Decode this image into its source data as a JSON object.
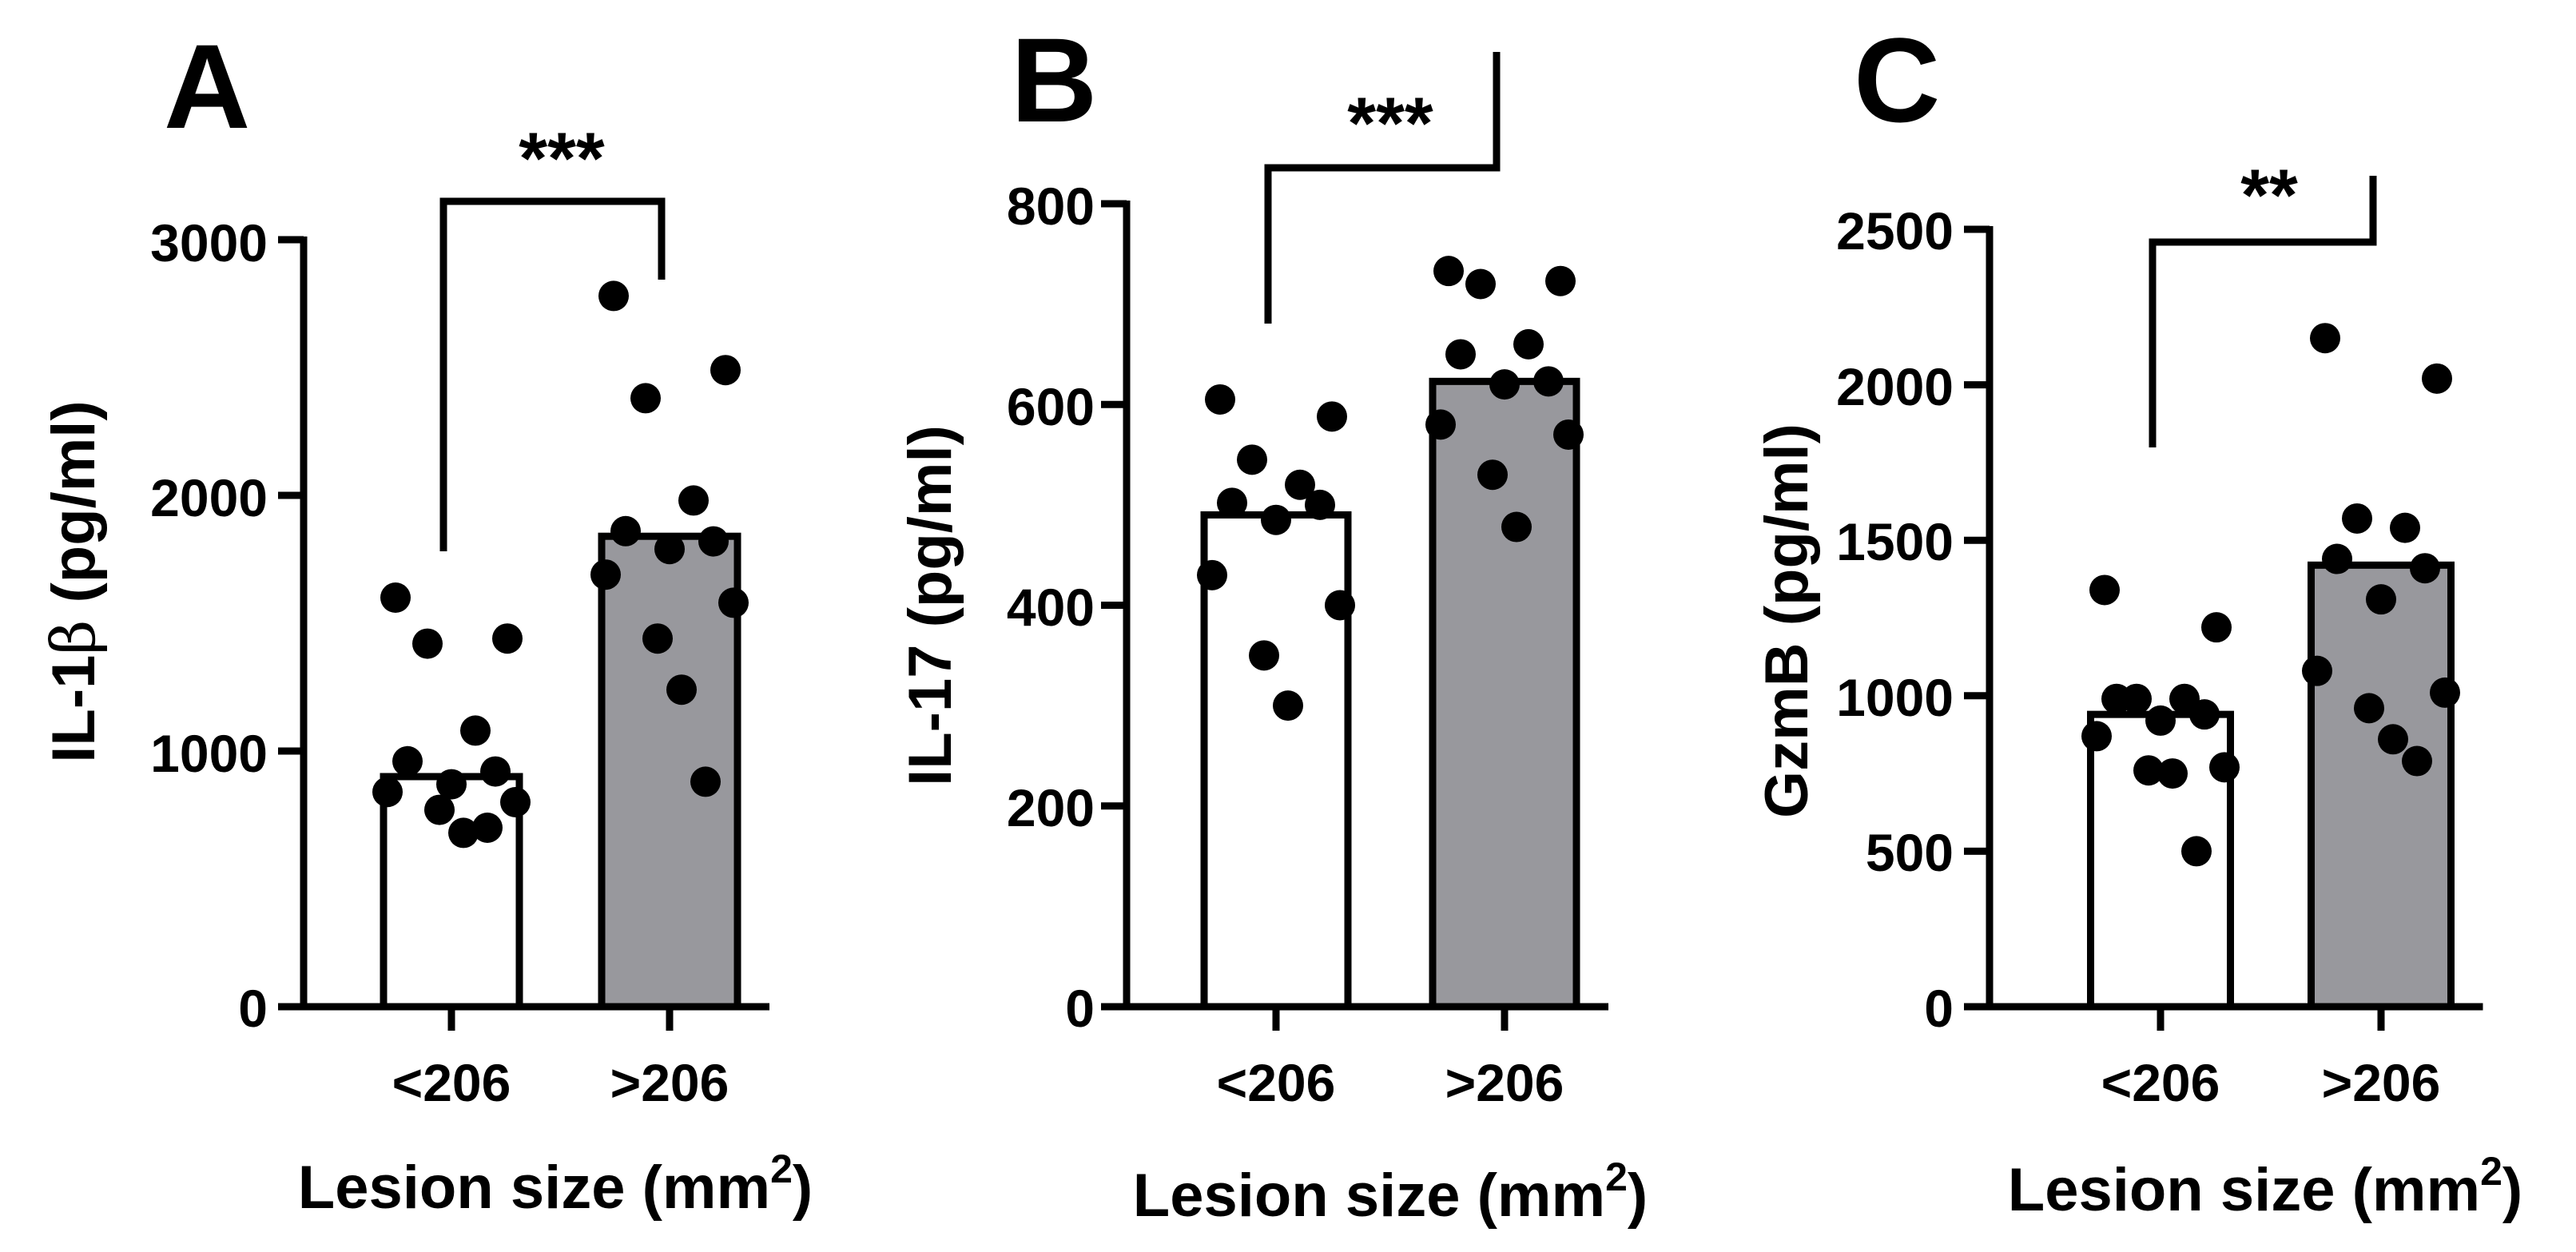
{
  "figure": {
    "panels": [
      {
        "letter": "A",
        "ylabel_main": "IL-1",
        "ylabel_greek": "β",
        "ylabel_unit": " (pg/ml)",
        "xlabel_main": "Lesion size (mm",
        "xlabel_sup": "2",
        "xlabel_end": ")",
        "yticks": [
          "0",
          "1000",
          "2000",
          "3000"
        ],
        "significance": "***"
      },
      {
        "letter": "B",
        "ylabel_main": "IL-17",
        "ylabel_greek": "",
        "ylabel_unit": " (pg/ml)",
        "xlabel_main": "Lesion size (mm",
        "xlabel_sup": "2",
        "xlabel_end": ")",
        "yticks": [
          "0",
          "200",
          "400",
          "600",
          "800"
        ],
        "significance": "***"
      },
      {
        "letter": "C",
        "ylabel_main": "GzmB",
        "ylabel_greek": "",
        "ylabel_unit": " (pg/ml)",
        "xlabel_main": "Lesion size (mm",
        "xlabel_sup": "2",
        "xlabel_end": ")",
        "yticks": [
          "0",
          "500",
          "1000",
          "1500",
          "2000",
          "2500"
        ],
        "significance": "**"
      }
    ]
  },
  "chart_data": [
    {
      "type": "bar",
      "title": "A",
      "ylabel": "IL-1β (pg/ml)",
      "xlabel": "Lesion size (mm2)",
      "ylim": [
        0,
        3000
      ],
      "categories": [
        "<206",
        ">206"
      ],
      "values": [
        900,
        1840
      ],
      "bar_colors": [
        "#ffffff",
        "#98989d"
      ],
      "points": [
        [
          1600,
          1440,
          1420,
          1080,
          960,
          920,
          870,
          840,
          800,
          770,
          680,
          700
        ],
        [
          2780,
          2490,
          2380,
          1980,
          1860,
          1820,
          1790,
          1690,
          1580,
          1440,
          1240,
          880
        ]
      ],
      "significance": "***"
    },
    {
      "type": "bar",
      "title": "B",
      "ylabel": "IL-17 (pg/ml)",
      "xlabel": "Lesion size (mm2)",
      "ylim": [
        0,
        800
      ],
      "categories": [
        "<206",
        ">206"
      ],
      "values": [
        490,
        623
      ],
      "bar_colors": [
        "#ffffff",
        "#98989d"
      ],
      "points": [
        [
          605,
          588,
          545,
          520,
          502,
          500,
          485,
          430,
          400,
          350,
          300
        ],
        [
          733,
          723,
          720,
          660,
          650,
          623,
          620,
          580,
          570,
          530,
          478
        ]
      ],
      "significance": "***"
    },
    {
      "type": "bar",
      "title": "C",
      "ylabel": "GzmB (pg/ml)",
      "xlabel": "Lesion size (mm2)",
      "ylim": [
        0,
        2500
      ],
      "categories": [
        "<206",
        ">206"
      ],
      "values": [
        940,
        1420
      ],
      "bar_colors": [
        "#ffffff",
        "#98989d"
      ],
      "points": [
        [
          1340,
          1220,
          990,
          990,
          990,
          940,
          920,
          870,
          770,
          760,
          750,
          500
        ],
        [
          2150,
          2020,
          1570,
          1540,
          1440,
          1410,
          1310,
          1080,
          1010,
          960,
          860,
          790
        ]
      ],
      "significance": "**"
    }
  ]
}
